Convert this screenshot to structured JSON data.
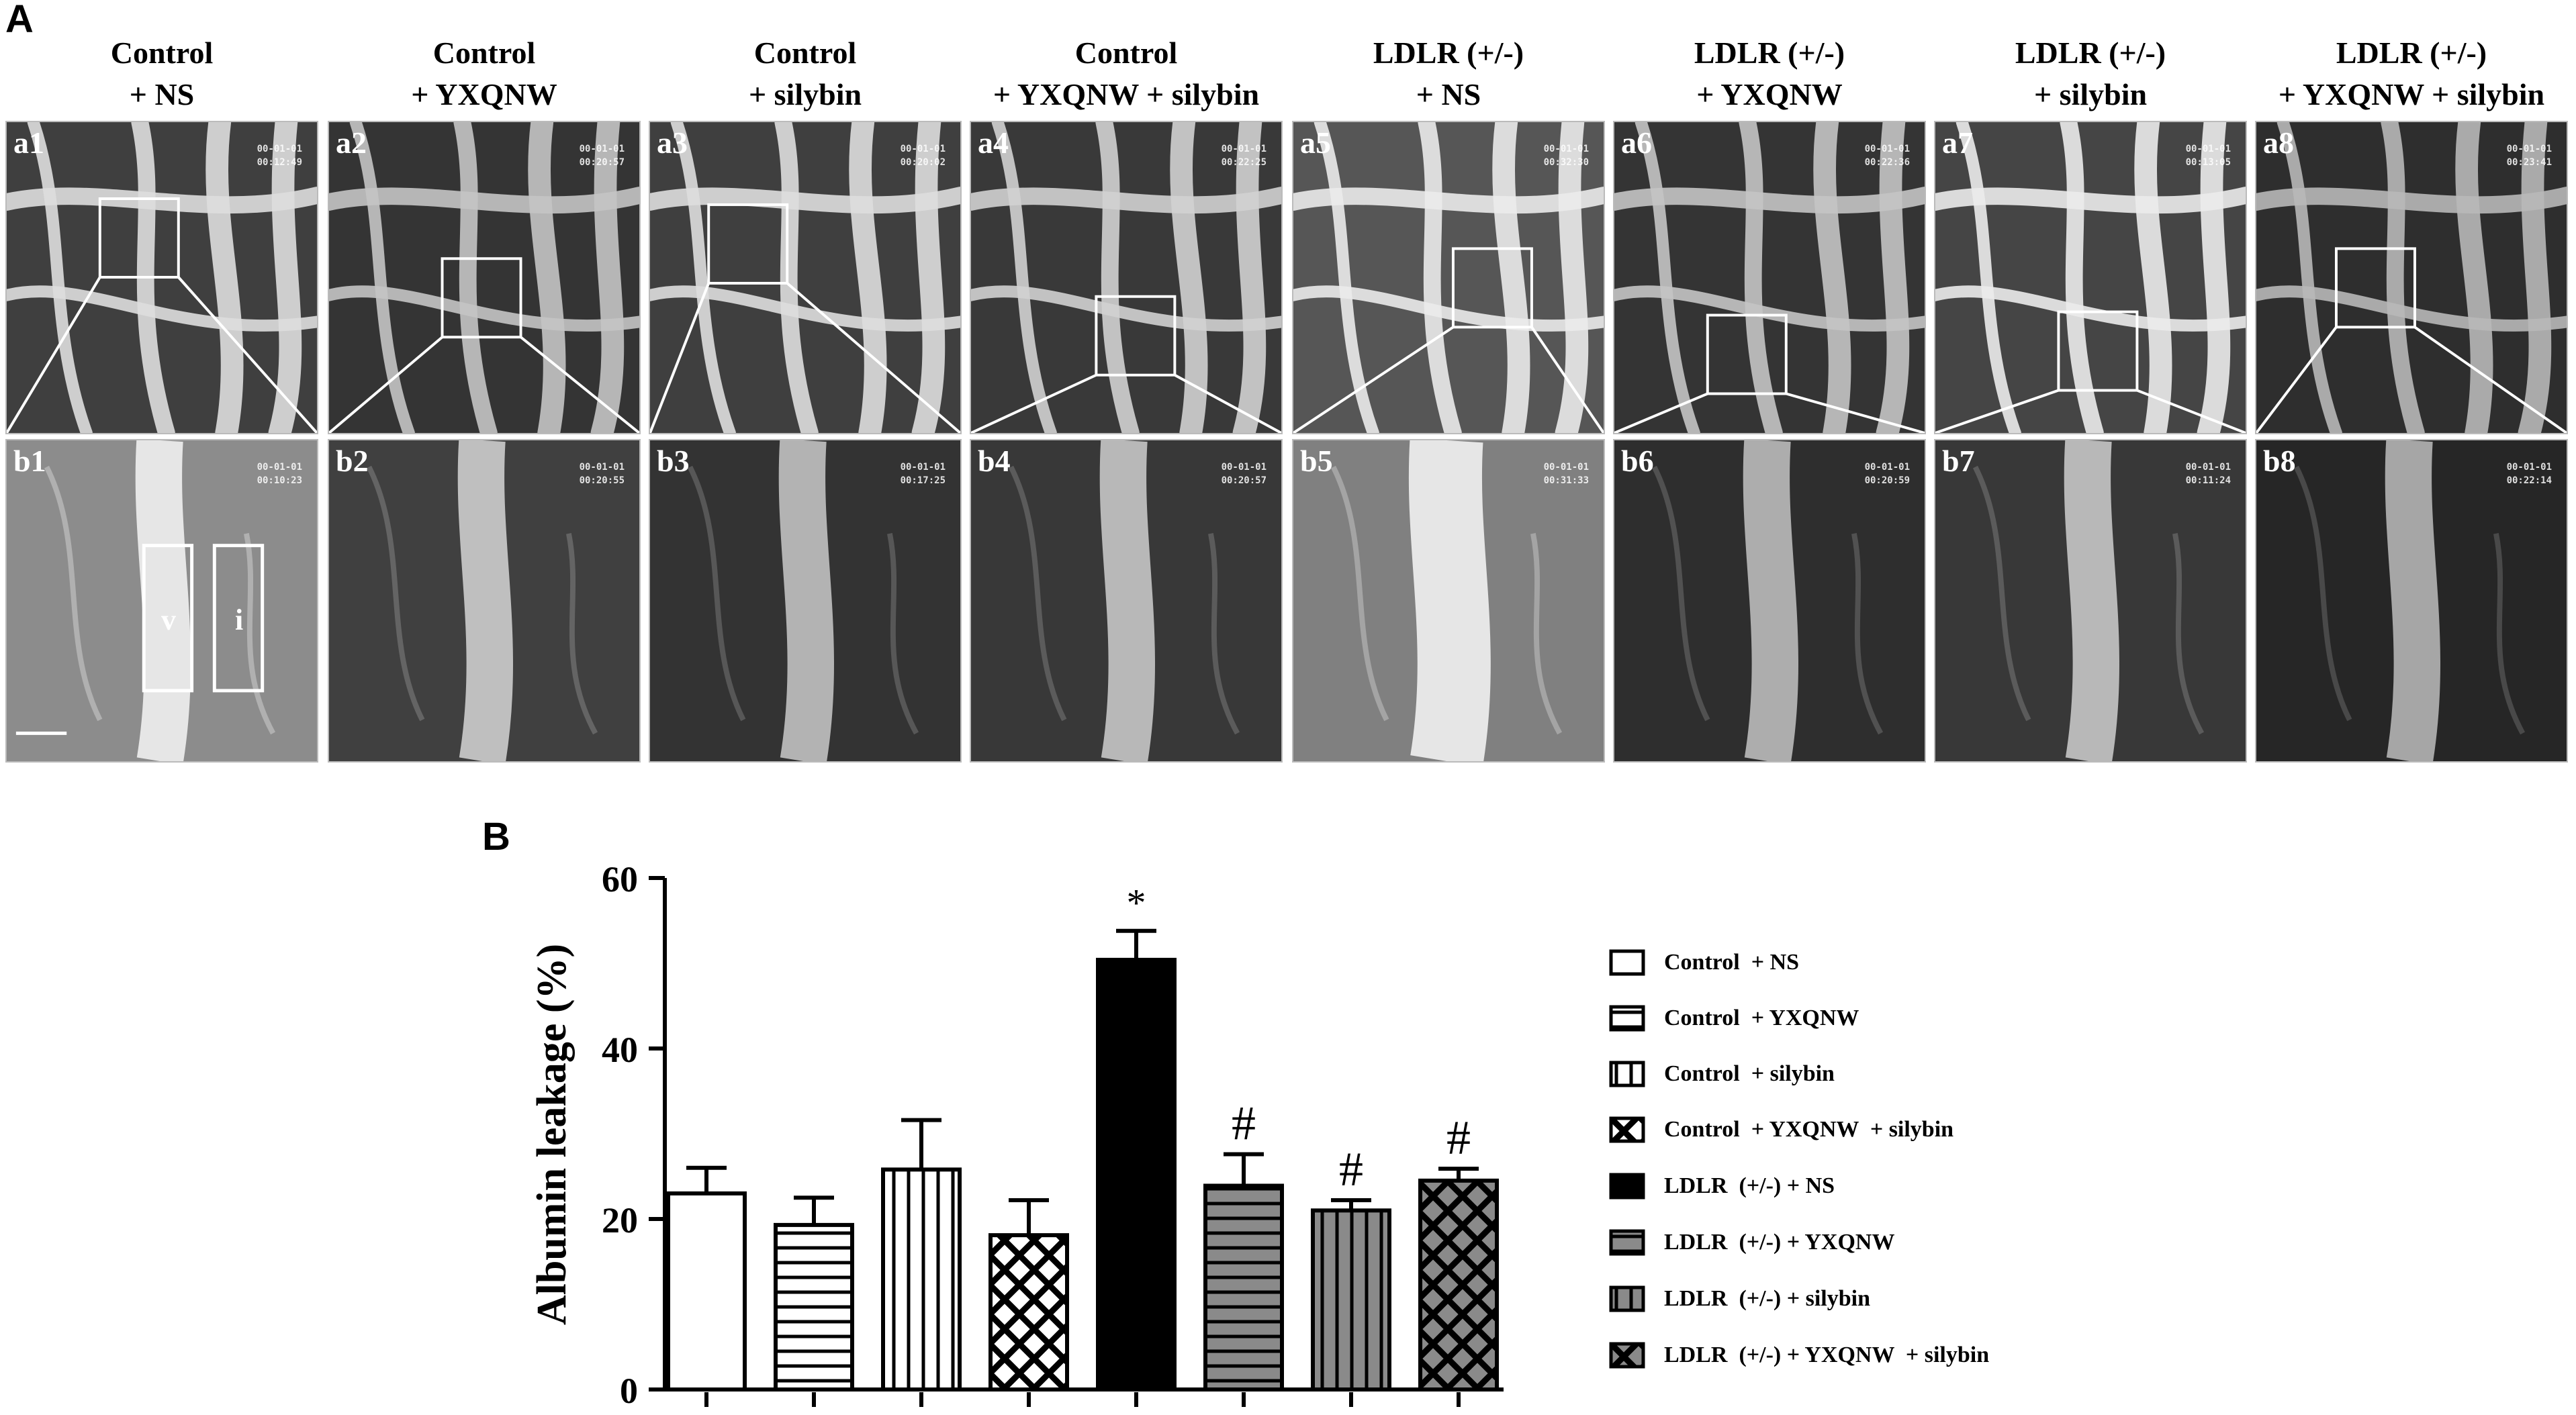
{
  "figure": {
    "panel_a_label": "A",
    "panel_b_label": "B",
    "columns": [
      {
        "title_line1": "Control",
        "title_line2": "+ NS",
        "top_label": "a1",
        "bottom_label": "b1",
        "top_time": "00:12:49",
        "bottom_time": "00:10:23"
      },
      {
        "title_line1": "Control",
        "title_line2": "+ YXQNW",
        "top_label": "a2",
        "bottom_label": "b2",
        "top_time": "00:20:57",
        "bottom_time": "00:20:55"
      },
      {
        "title_line1": "Control",
        "title_line2": "+ silybin",
        "top_label": "a3",
        "bottom_label": "b3",
        "top_time": "00:20:02",
        "bottom_time": "00:17:25"
      },
      {
        "title_line1": "Control",
        "title_line2": "+ YXQNW + silybin",
        "top_label": "a4",
        "bottom_label": "b4",
        "top_time": "00:22:25",
        "bottom_time": "00:20:57"
      },
      {
        "title_line1": "LDLR (+/-)",
        "title_line2": "+ NS",
        "top_label": "a5",
        "bottom_label": "b5",
        "top_time": "00:32:30",
        "bottom_time": "00:31:33"
      },
      {
        "title_line1": "LDLR (+/-)",
        "title_line2": "+ YXQNW",
        "top_label": "a6",
        "bottom_label": "b6",
        "top_time": "00:22:36",
        "bottom_time": "00:20:59"
      },
      {
        "title_line1": "LDLR (+/-)",
        "title_line2": "+ silybin",
        "top_label": "a7",
        "bottom_label": "b7",
        "top_time": "00:13:05",
        "bottom_time": "00:11:24"
      },
      {
        "title_line1": "LDLR (+/-)",
        "title_line2": "+ YXQNW + silybin",
        "top_label": "a8",
        "bottom_label": "b8",
        "top_time": "00:23:41",
        "bottom_time": "00:22:14"
      }
    ],
    "stamp_date": "00-01-01",
    "roi_labels": {
      "vessel": "v",
      "interstitium": "i"
    }
  },
  "chart_data": {
    "type": "bar",
    "title": "",
    "xlabel": "",
    "ylabel": "Albumin leakage (%)",
    "ylim": [
      0,
      60
    ],
    "yticks": [
      0,
      20,
      40,
      60
    ],
    "categories": [
      "Control  + NS",
      "Control  + YXQNW",
      "Control  + silybin",
      "Control  + YXQNW  + silybin",
      "LDLR  (+/-) + NS",
      "LDLR  (+/-) + YXQNW",
      "LDLR  (+/-) + silybin",
      "LDLR  (+/-) + YXQNW  + silybin"
    ],
    "values": [
      23,
      19.3,
      25.8,
      18.1,
      50.4,
      23.9,
      21.0,
      24.5
    ],
    "errors": [
      3.0,
      3.2,
      5.8,
      4.1,
      3.4,
      3.7,
      1.2,
      1.4
    ],
    "annotations": [
      "",
      "",
      "",
      "",
      "*",
      "#",
      "#",
      "#"
    ],
    "patterns": [
      "open",
      "horizontal",
      "vertical",
      "crosshatch",
      "solid",
      "horizontal-gray",
      "vertical-gray",
      "crosshatch-gray"
    ],
    "legend_position": "right"
  }
}
